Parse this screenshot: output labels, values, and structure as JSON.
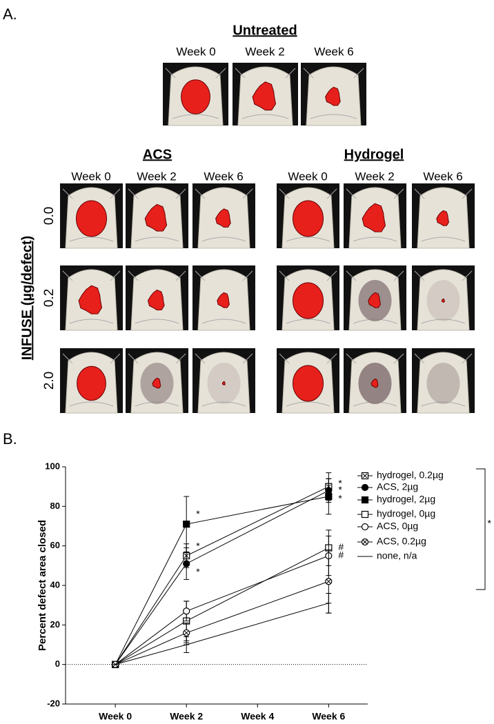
{
  "panel_a": {
    "label": "A.",
    "untreated": {
      "title": "Untreated",
      "weeks": [
        "Week 0",
        "Week 2",
        "Week 6"
      ]
    },
    "acs": {
      "title": "ACS",
      "weeks": [
        "Week 0",
        "Week 2",
        "Week 6"
      ]
    },
    "hydrogel": {
      "title": "Hydrogel",
      "weeks": [
        "Week 0",
        "Week 2",
        "Week 6"
      ]
    },
    "y_label": "INFUSE (µg/defect)",
    "rows": [
      "0.0",
      "0.2",
      "2.0"
    ]
  },
  "chart_data": {
    "type": "line",
    "panel_label": "B.",
    "ylabel": "Percent defect area closed",
    "color": "#000000",
    "x": [
      0,
      2,
      6
    ],
    "xlim": [
      -1.4,
      7.1
    ],
    "xticks": [
      {
        "value": 0,
        "label": "Week 0"
      },
      {
        "value": 2,
        "label": "Week 2"
      },
      {
        "value": 4,
        "label": "Week 4"
      },
      {
        "value": 6,
        "label": "Week 6"
      }
    ],
    "ylim": [
      -20,
      100
    ],
    "yticks": [
      -20,
      0,
      20,
      40,
      60,
      80,
      100
    ],
    "series": [
      {
        "name": "hydrogel, 0.2µg",
        "marker": "square-x",
        "values": [
          0,
          55,
          90
        ],
        "errors": [
          0,
          6,
          7
        ],
        "annotations": [
          null,
          "*",
          "*"
        ]
      },
      {
        "name": "ACS, 2µg",
        "marker": "circle-filled",
        "values": [
          0,
          51,
          88
        ],
        "errors": [
          0,
          8,
          6
        ],
        "annotations": [
          null,
          "*",
          "*"
        ]
      },
      {
        "name": "hydrogel, 2µg",
        "marker": "square-filled",
        "values": [
          0,
          71,
          85
        ],
        "errors": [
          0,
          14,
          9
        ],
        "annotations": [
          null,
          "*",
          "*"
        ]
      },
      {
        "name": "hydrogel, 0µg",
        "marker": "square-open",
        "values": [
          0,
          22,
          59
        ],
        "errors": [
          0,
          10,
          9
        ],
        "annotations": [
          null,
          null,
          "#"
        ]
      },
      {
        "name": "ACS, 0µg",
        "marker": "circle-open",
        "values": [
          0,
          27,
          55
        ],
        "errors": [
          0,
          5,
          10
        ],
        "annotations": [
          null,
          null,
          "#"
        ]
      },
      {
        "name": "ACS, 0.2µg",
        "marker": "circle-x",
        "values": [
          0,
          16,
          42
        ],
        "errors": [
          0,
          5,
          16
        ]
      },
      {
        "name": "none, n/a",
        "marker": "none",
        "values": [
          0,
          10,
          31
        ],
        "errors": [
          0,
          4,
          5
        ]
      }
    ],
    "bracket_label": "*"
  }
}
